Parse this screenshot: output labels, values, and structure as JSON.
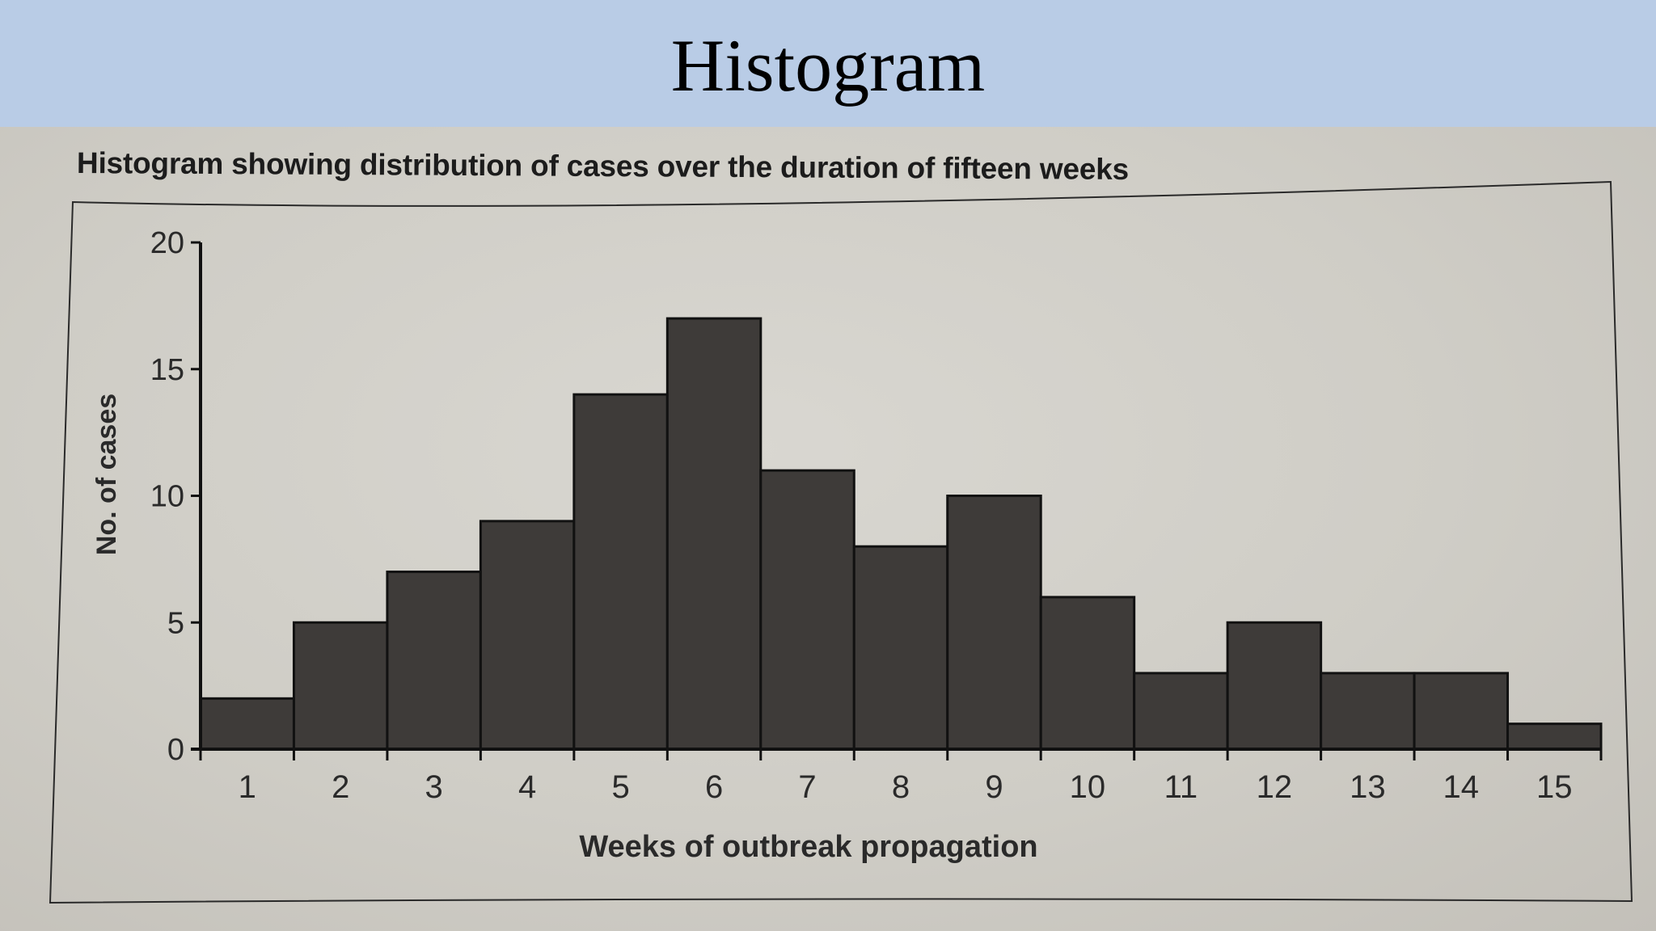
{
  "slide": {
    "title": "Histogram"
  },
  "chart_data": {
    "type": "bar",
    "title": "Histogram showing distribution of cases over the duration of fifteen weeks",
    "xlabel": "Weeks of outbreak propagation",
    "ylabel": "No. of cases",
    "categories": [
      "1",
      "2",
      "3",
      "4",
      "5",
      "6",
      "7",
      "8",
      "9",
      "10",
      "11",
      "12",
      "13",
      "14",
      "15"
    ],
    "values": [
      2,
      5,
      7,
      9,
      14,
      17,
      11,
      8,
      10,
      6,
      3,
      5,
      3,
      3,
      1
    ],
    "ylim": [
      0,
      20
    ],
    "yticks": [
      0,
      5,
      10,
      15,
      20
    ],
    "grid": false,
    "bar_color": "#3e3b39"
  }
}
